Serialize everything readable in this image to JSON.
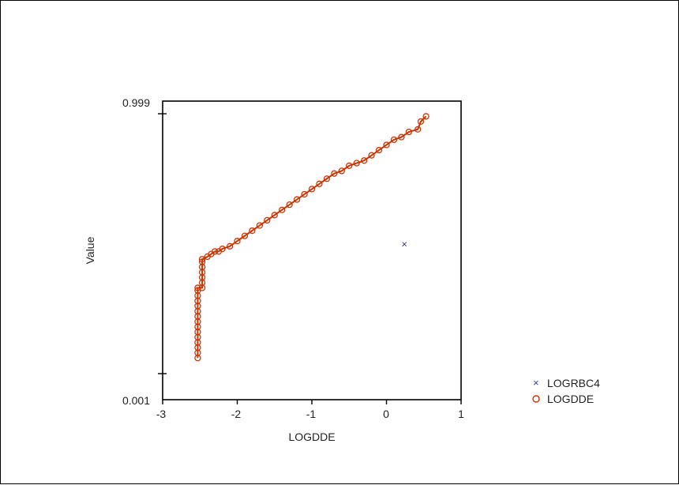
{
  "chart_data": {
    "type": "scatter",
    "title": "",
    "xlabel": "LOGDDE",
    "ylabel": "Value",
    "xlim": [
      -3,
      1
    ],
    "ylim_labels": [
      "0.001",
      "0.999"
    ],
    "x_ticks": [
      "-3",
      "-2",
      "-1",
      "0",
      "1"
    ],
    "y_ticks": [
      "0.001",
      "0.999"
    ],
    "grid": false,
    "legend_position": "right",
    "series": [
      {
        "name": "LOGRBC4",
        "marker": "x",
        "color": "#3a3a9a",
        "points": [
          [
            0.24,
            0.5
          ]
        ]
      },
      {
        "name": "LOGDDE",
        "marker": "circle-open",
        "color": "#cc3300",
        "connected": true,
        "points": [
          [
            -2.53,
            0.06
          ],
          [
            -2.53,
            0.08
          ],
          [
            -2.53,
            0.1
          ],
          [
            -2.53,
            0.12
          ],
          [
            -2.53,
            0.14
          ],
          [
            -2.53,
            0.16
          ],
          [
            -2.53,
            0.18
          ],
          [
            -2.53,
            0.2
          ],
          [
            -2.53,
            0.22
          ],
          [
            -2.53,
            0.24
          ],
          [
            -2.53,
            0.26
          ],
          [
            -2.53,
            0.28
          ],
          [
            -2.53,
            0.3
          ],
          [
            -2.53,
            0.32
          ],
          [
            -2.53,
            0.33
          ],
          [
            -2.47,
            0.33
          ],
          [
            -2.47,
            0.35
          ],
          [
            -2.47,
            0.37
          ],
          [
            -2.47,
            0.39
          ],
          [
            -2.47,
            0.41
          ],
          [
            -2.47,
            0.43
          ],
          [
            -2.47,
            0.44
          ],
          [
            -2.4,
            0.45
          ],
          [
            -2.35,
            0.46
          ],
          [
            -2.3,
            0.47
          ],
          [
            -2.25,
            0.47
          ],
          [
            -2.2,
            0.48
          ],
          [
            -2.1,
            0.49
          ],
          [
            -2.0,
            0.51
          ],
          [
            -1.9,
            0.53
          ],
          [
            -1.8,
            0.55
          ],
          [
            -1.7,
            0.57
          ],
          [
            -1.6,
            0.59
          ],
          [
            -1.5,
            0.61
          ],
          [
            -1.4,
            0.63
          ],
          [
            -1.3,
            0.65
          ],
          [
            -1.2,
            0.67
          ],
          [
            -1.1,
            0.69
          ],
          [
            -1.0,
            0.71
          ],
          [
            -0.9,
            0.73
          ],
          [
            -0.8,
            0.75
          ],
          [
            -0.7,
            0.77
          ],
          [
            -0.6,
            0.78
          ],
          [
            -0.5,
            0.8
          ],
          [
            -0.4,
            0.81
          ],
          [
            -0.3,
            0.82
          ],
          [
            -0.2,
            0.84
          ],
          [
            -0.1,
            0.86
          ],
          [
            0.0,
            0.88
          ],
          [
            0.1,
            0.9
          ],
          [
            0.2,
            0.91
          ],
          [
            0.3,
            0.93
          ],
          [
            0.42,
            0.94
          ],
          [
            0.46,
            0.97
          ],
          [
            0.53,
            0.99
          ]
        ]
      }
    ]
  }
}
